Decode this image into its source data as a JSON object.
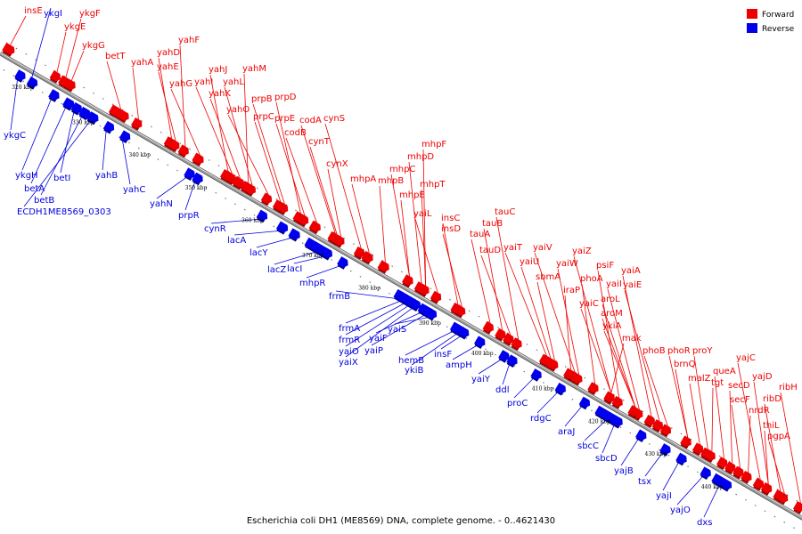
{
  "caption": "Escherichia coli DH1 (ME8569) DNA, complete genome. - 0..4621430",
  "legend": [
    {
      "label": "Forward",
      "color": "#ee0000"
    },
    {
      "label": "Reverse",
      "color": "#0000ee"
    }
  ],
  "ticks": [
    "320 kbp",
    "330 kbp",
    "340 kbp",
    "350 kbp",
    "360 kbp",
    "370 kbp",
    "380 kbp",
    "390 kbp",
    "400 kbp",
    "410 kbp",
    "420 kbp",
    "430 kbp",
    "440 kbp"
  ],
  "forward_genes": [
    "insE",
    "ykgF",
    "ykgE",
    "ykgG",
    "betT",
    "yahA",
    "yahF",
    "yahD",
    "yahE",
    "yahG",
    "yahJ",
    "yahM",
    "yahI",
    "yahL",
    "yahK",
    "yahO",
    "prpB",
    "prpD",
    "prpC",
    "prpE",
    "codB",
    "codA",
    "cynS",
    "cynT",
    "cynX",
    "mhpF",
    "mhpD",
    "mhpC",
    "mhpA",
    "mhpB",
    "mhpT",
    "mhpE",
    "yaiL",
    "insC",
    "insD",
    "tauC",
    "tauB",
    "tauA",
    "tauD",
    "yaiT",
    "yaiV",
    "yaiZ",
    "yaiU",
    "yaiW",
    "sbmA",
    "psiF",
    "phoA",
    "iraP",
    "yaiA",
    "yaiI",
    "yaiE",
    "yaiC",
    "aroL",
    "aroM",
    "ykiA",
    "mak",
    "phoB",
    "phoR",
    "proY",
    "brnQ",
    "yajC",
    "malZ",
    "queA",
    "tgt",
    "secD",
    "yajD",
    "secF",
    "ribH",
    "nrdR",
    "ribD",
    "thiL",
    "pgpA"
  ],
  "reverse_genes": [
    "ykgI",
    "ykgC",
    "ykgH",
    "betA",
    "betI",
    "betB",
    "ECDH1ME8569_0303",
    "yahB",
    "yahC",
    "yahN",
    "prpR",
    "cynR",
    "lacA",
    "lacY",
    "lacZ",
    "lacI",
    "mhpR",
    "frmB",
    "frmA",
    "frmR",
    "yaiO",
    "yaiX",
    "yaiF",
    "yaiP",
    "yaiS",
    "hemB",
    "insF",
    "ykiB",
    "ampH",
    "yaiY",
    "ddl",
    "proC",
    "rdgC",
    "araJ",
    "sbcC",
    "sbcD",
    "yajB",
    "tsx",
    "yajI",
    "yajO",
    "dxs"
  ]
}
